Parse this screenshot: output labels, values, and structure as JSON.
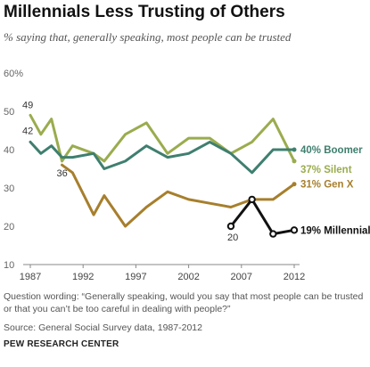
{
  "title": "Millennials Less Trusting of Others",
  "subtitle": "% saying that, generally speaking, most people can be trusted",
  "note": "Question wording: “Generally speaking, would you say that most people can be trusted or that you can’t be too careful in dealing with people?”",
  "source": "Source: General Social Survey data, 1987-2012",
  "org": "PEW RESEARCH CENTER",
  "chart_data": {
    "type": "line",
    "ylim": [
      10,
      60
    ],
    "xlim": [
      1987,
      2012
    ],
    "grid": false,
    "yticks": [
      10,
      20,
      30,
      40,
      50,
      60
    ],
    "ytick_labels": [
      "10",
      "20",
      "30",
      "40",
      "50",
      "60%"
    ],
    "xticks": [
      "1987",
      "1992",
      "1997",
      "2002",
      "2007",
      "2012"
    ],
    "series": [
      {
        "label": "37% Silent",
        "color": "#9aac4e",
        "x": [
          1987,
          1988,
          1989,
          1990,
          1991,
          1993,
          1994,
          1996,
          1998,
          2000,
          2002,
          2004,
          2006,
          2008,
          2010,
          2012
        ],
        "y": [
          49,
          44,
          48,
          37,
          41,
          39,
          37,
          44,
          47,
          39,
          43,
          43,
          39,
          42,
          48,
          37
        ]
      },
      {
        "label": "40% Boomer",
        "color": "#3f7f6f",
        "x": [
          1987,
          1988,
          1989,
          1990,
          1991,
          1993,
          1994,
          1996,
          1998,
          2000,
          2002,
          2004,
          2006,
          2008,
          2010,
          2012
        ],
        "y": [
          42,
          39,
          41,
          38,
          38,
          39,
          35,
          37,
          41,
          38,
          39,
          42,
          39,
          34,
          40,
          40
        ]
      },
      {
        "label": "31% Gen X",
        "color": "#a77f2c",
        "x": [
          1990,
          1991,
          1993,
          1994,
          1996,
          1998,
          2000,
          2002,
          2004,
          2006,
          2008,
          2010,
          2012
        ],
        "y": [
          36,
          34,
          23,
          28,
          20,
          25,
          29,
          27,
          26,
          25,
          27,
          27,
          31
        ]
      },
      {
        "label": "19% Millennial",
        "color": "#111111",
        "x": [
          2006,
          2008,
          2010,
          2012
        ],
        "y": [
          20,
          27,
          18,
          19
        ]
      }
    ],
    "annotations": [
      {
        "text": "49",
        "series": 0,
        "point": 0
      },
      {
        "text": "42",
        "series": 1,
        "point": 0
      },
      {
        "text": "36",
        "series": 2,
        "point": 0
      },
      {
        "text": "20",
        "series": 3,
        "point": 0
      }
    ]
  }
}
